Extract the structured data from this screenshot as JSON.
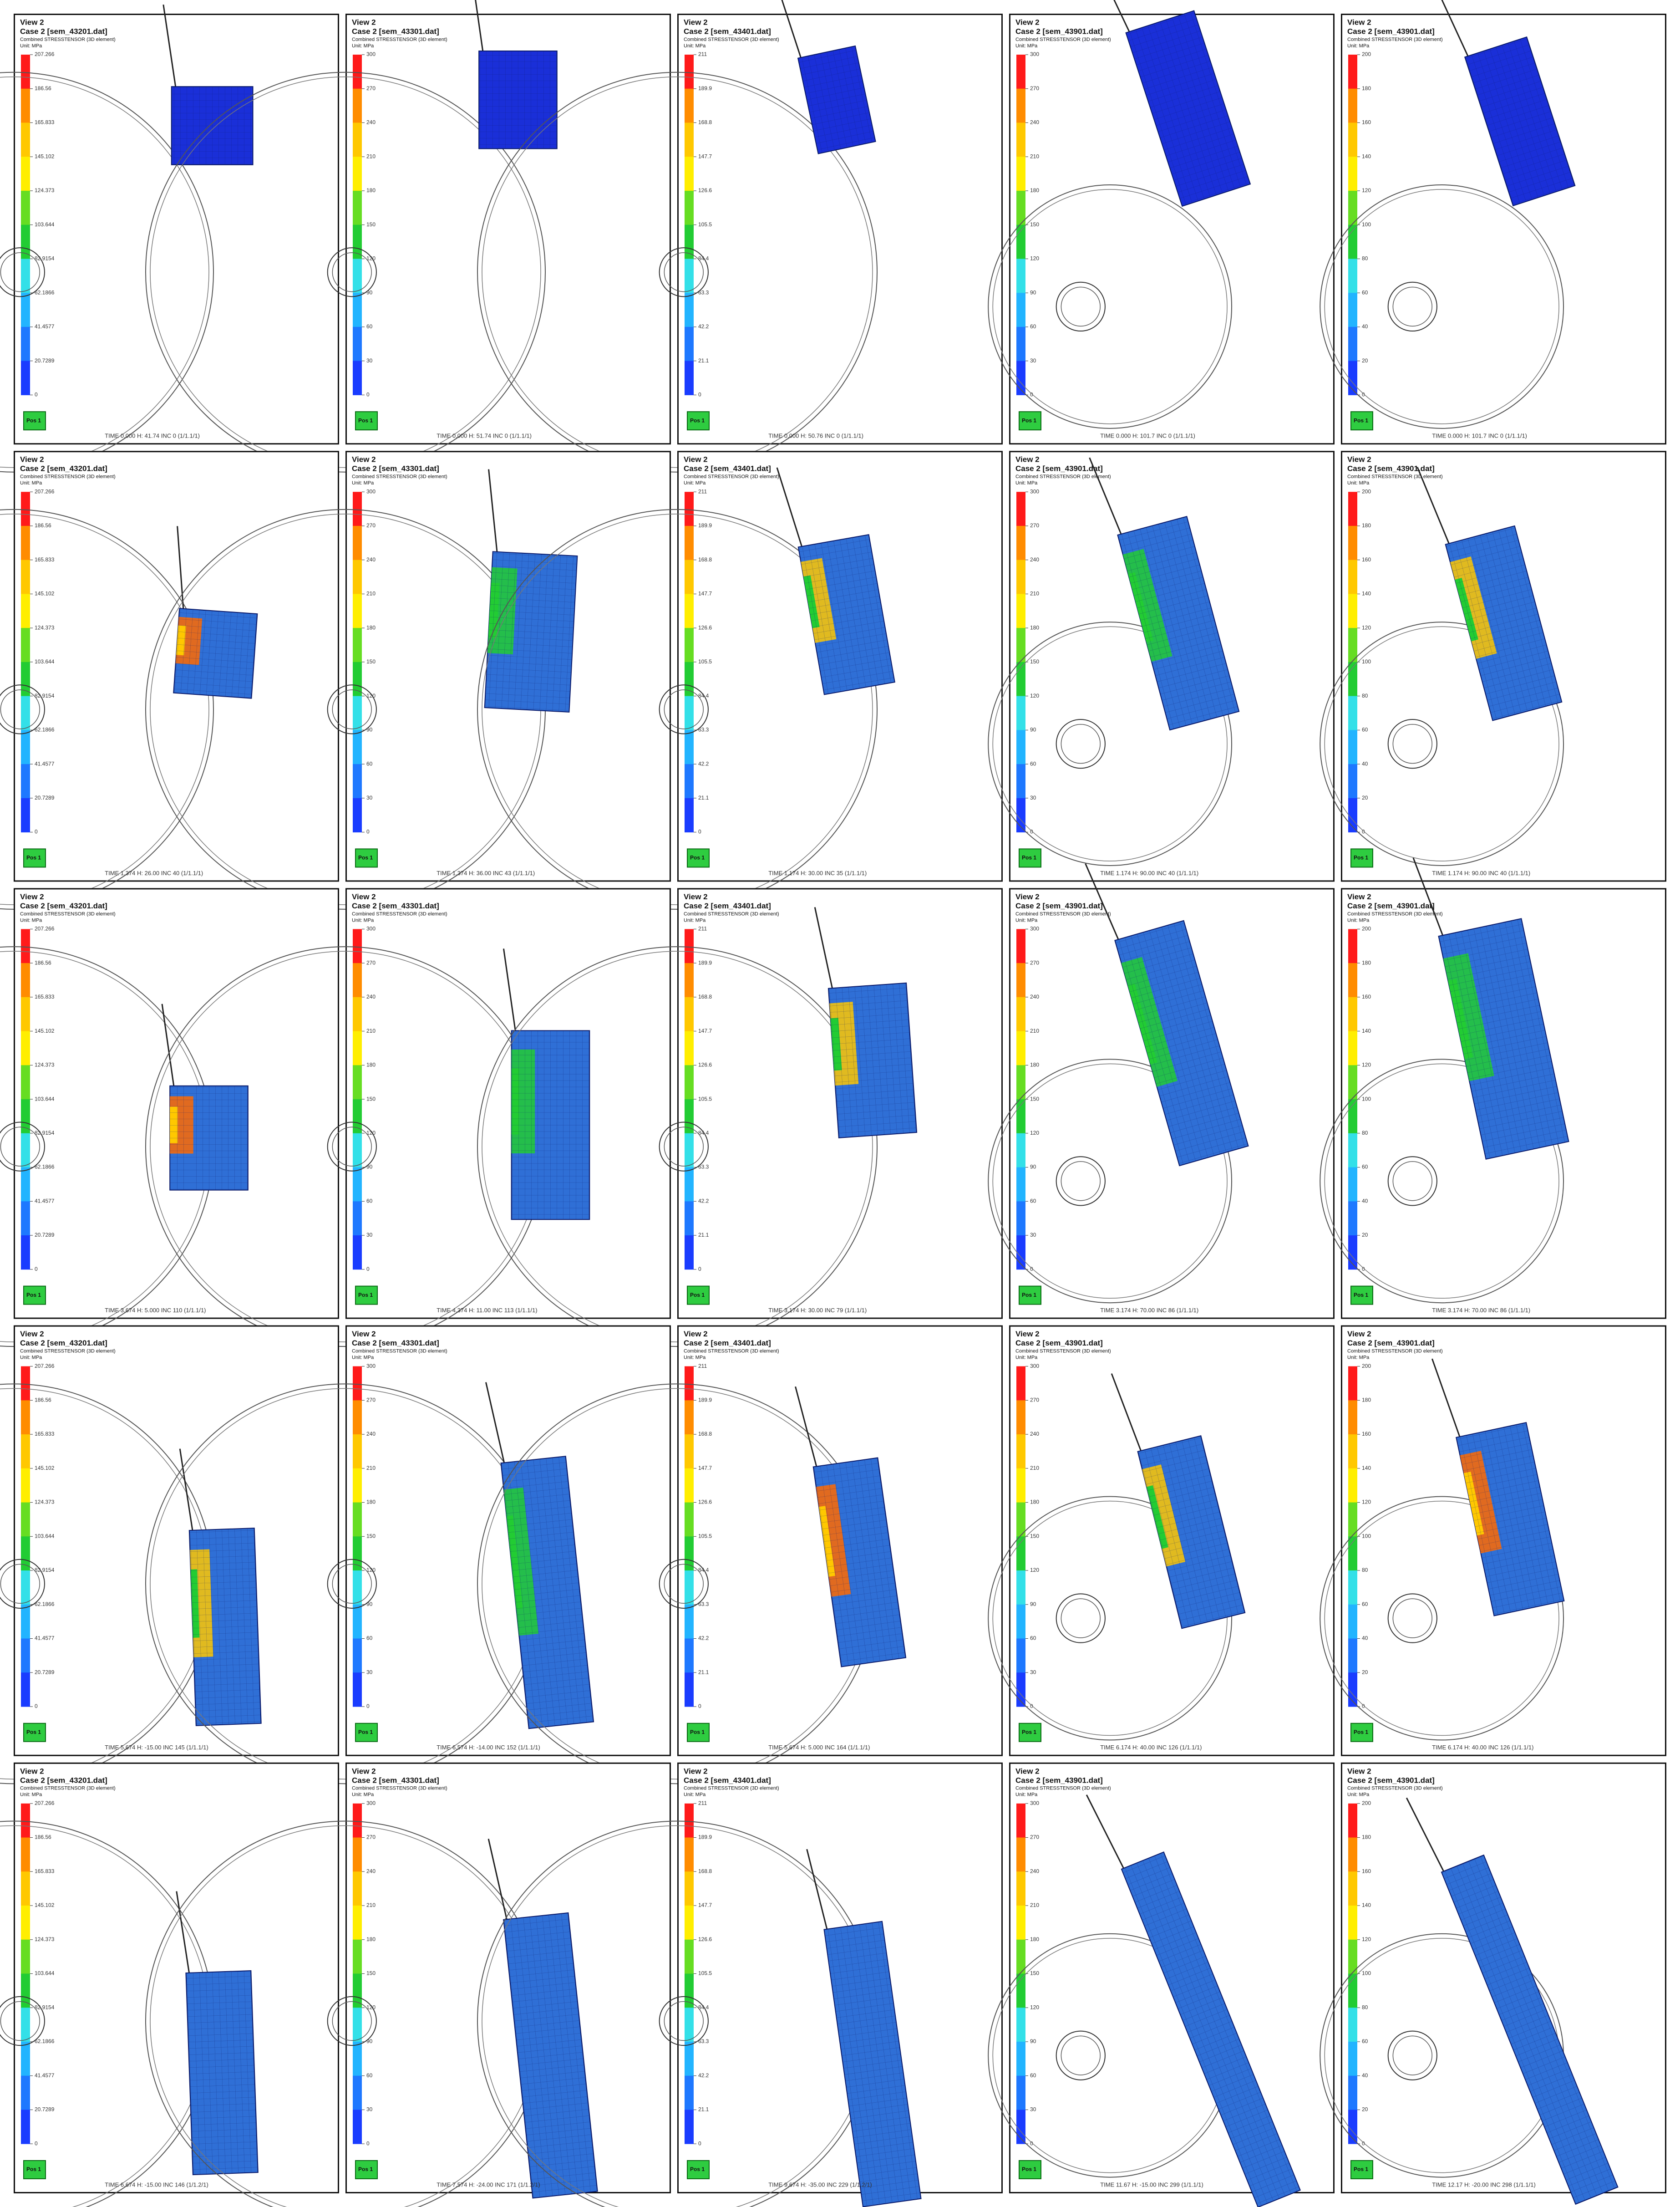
{
  "view": "View 2",
  "quantity": "Combined STRESSTENSOR (3D element)",
  "unit": "Unit: MPa",
  "icon": "Pos 1",
  "legend_colors": [
    "#ff1a1a",
    "#ff8c00",
    "#ffc800",
    "#ffee00",
    "#66dd22",
    "#22cc33",
    "#33e0e8",
    "#22b4ff",
    "#1e78ff",
    "#1a3cff"
  ],
  "columns": [
    {
      "case": "Case 2 [sem_43201.dat]",
      "legend": [
        "207.266",
        "186.56",
        "165.833",
        "145.102",
        "124.373",
        "103.644",
        "82.9154",
        "62.1866",
        "41.4577",
        "20.7289",
        "0"
      ]
    },
    {
      "case": "Case 2 [sem_43301.dat]",
      "legend": [
        "300",
        "270",
        "240",
        "210",
        "180",
        "150",
        "120",
        "90",
        "60",
        "30",
        "0"
      ]
    },
    {
      "case": "Case 2 [sem_43401.dat]",
      "legend": [
        "211",
        "189.9",
        "168.8",
        "147.7",
        "126.6",
        "105.5",
        "84.4",
        "63.3",
        "42.2",
        "21.1",
        "0"
      ]
    },
    {
      "case": "Case 2 [sem_43901.dat]",
      "legend": [
        "300",
        "270",
        "240",
        "210",
        "180",
        "150",
        "120",
        "90",
        "60",
        "30",
        "0"
      ]
    },
    {
      "case": "Case 2 [sem_43901.dat]",
      "legend": [
        "200",
        "180",
        "160",
        "140",
        "120",
        "100",
        "80",
        "60",
        "40",
        "20",
        "0"
      ]
    }
  ],
  "footers": [
    [
      "TIME 0.000   H: 41.74   INC 0 (1/1.1/1)",
      "TIME 0.000   H: 51.74   INC 0 (1/1.1/1)",
      "TIME 0.000   H: 50.76   INC 0 (1/1.1/1)",
      "TIME 0.000   H: 101.7   INC 0 (1/1.1/1)",
      "TIME 0.000   H: 101.7   INC 0 (1/1.1/1)"
    ],
    [
      "TIME 1.374   H: 26.00   INC 40 (1/1.1/1)",
      "TIME 1.374   H: 36.00   INC 43 (1/1.1/1)",
      "TIME 1.174   H: 30.00   INC 35 (1/1.1/1)",
      "TIME 1.174   H: 90.00   INC 40 (1/1.1/1)",
      "TIME 1.174   H: 90.00   INC 40 (1/1.1/1)"
    ],
    [
      "TIME 3.674   H: 5.000   INC 110 (1/1.1/1)",
      "TIME 4.374   H: 11.00   INC 113 (1/1.1/1)",
      "TIME 3.174   H: 30.00   INC 79 (1/1.1/1)",
      "TIME 3.174   H: 70.00   INC 86 (1/1.1/1)",
      "TIME 3.174   H: 70.00   INC 86 (1/1.1/1)"
    ],
    [
      "TIME 5.674   H: -15.00   INC 145 (1/1.1/1)",
      "TIME 6.574   H: -14.00   INC 152 (1/1.1/1)",
      "TIME 5.674   H: 5.000   INC 164 (1/1.1/1)",
      "TIME 6.174   H: 40.00   INC 126 (1/1.1/1)",
      "TIME 6.174   H: 40.00   INC 126 (1/1.1/1)"
    ],
    [
      "TIME 6.674   H: -15.00   INC 146 (1/1.2/1)",
      "TIME 7.574   H: -24.00   INC 171 (1/1.2/1)",
      "TIME 9.674   H: -35.00   INC 229 (1/1.2/1)",
      "TIME 11.67   H: -15.00   INC 299 (1/1.1/1)",
      "TIME 12.17   H: -20.00   INC 298 (1/1.1/1)"
    ]
  ]
}
